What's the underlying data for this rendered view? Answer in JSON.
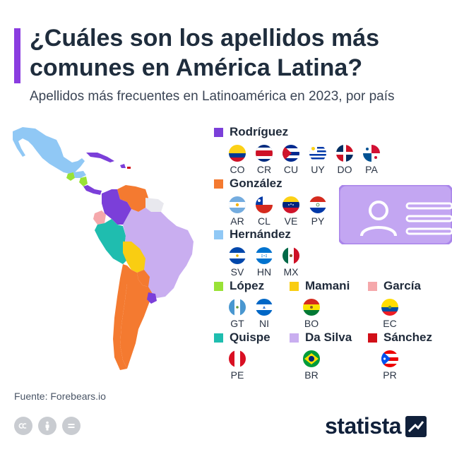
{
  "header": {
    "title": "¿Cuáles son los apellidos más comunes en América Latina?",
    "subtitle": "Apellidos más frecuentes en Latinoamérica en 2023, por país"
  },
  "colors": {
    "accent": "#8a3ce0",
    "rodriguez": "#7b3fd9",
    "gonzalez": "#f47a30",
    "hernandez": "#90c8f5",
    "lopez": "#99e236",
    "mamani": "#f9cd12",
    "garcia": "#f5a8ab",
    "quispe": "#1fbdaf",
    "dasilva": "#c9aef0",
    "sanchez": "#d10f18"
  },
  "legend": [
    {
      "surname": "Rodríguez",
      "color": "#7b3fd9",
      "countries": [
        "CO",
        "CR",
        "CU",
        "UY",
        "DO",
        "PA"
      ]
    },
    {
      "surname": "González",
      "color": "#f47a30",
      "countries": [
        "AR",
        "CL",
        "VE",
        "PY"
      ]
    },
    {
      "surname": "Hernández",
      "color": "#90c8f5",
      "countries": [
        "SV",
        "HN",
        "MX"
      ]
    },
    {
      "surname": "López",
      "color": "#99e236",
      "countries": [
        "GT",
        "NI"
      ]
    },
    {
      "surname": "Mamani",
      "color": "#f9cd12",
      "countries": [
        "BO"
      ]
    },
    {
      "surname": "García",
      "color": "#f5a8ab",
      "countries": [
        "EC"
      ]
    },
    {
      "surname": "Quispe",
      "color": "#1fbdaf",
      "countries": [
        "PE"
      ]
    },
    {
      "surname": "Da Silva",
      "color": "#c9aef0",
      "countries": [
        "BR"
      ]
    },
    {
      "surname": "Sánchez",
      "color": "#d10f18",
      "countries": [
        "PR"
      ]
    }
  ],
  "footer": {
    "source": "Fuente: Forebears.io",
    "brand": "statista"
  }
}
